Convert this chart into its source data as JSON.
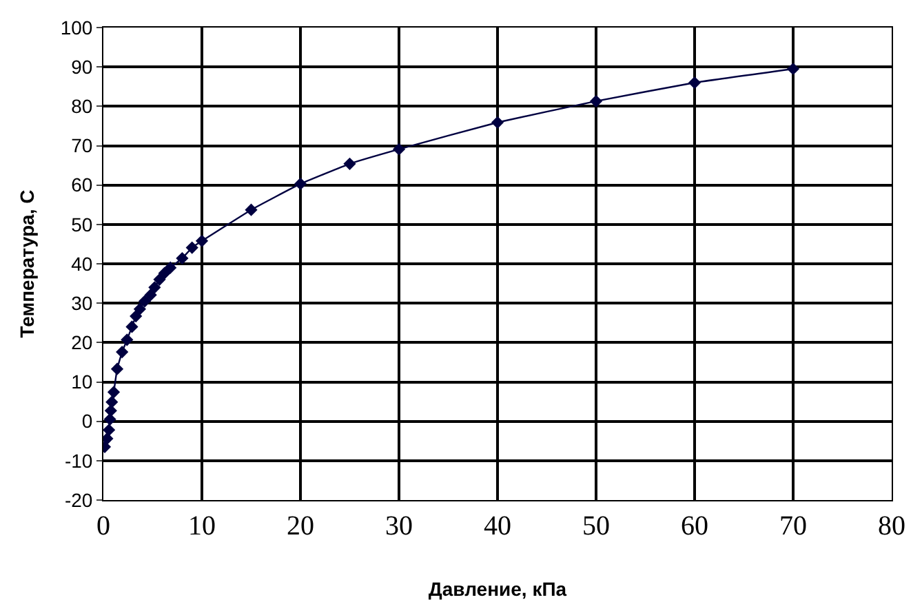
{
  "chart_data": {
    "type": "line",
    "xlabel": "Давление, кПа",
    "ylabel": "Температура, С",
    "x": [
      0.14,
      0.38,
      0.57,
      0.67,
      0.76,
      0.86,
      1.05,
      1.4,
      1.9,
      2.4,
      2.9,
      3.3,
      3.7,
      4.2,
      4.8,
      5.2,
      5.7,
      6.2,
      6.8,
      8,
      9,
      10,
      15,
      20,
      25,
      30,
      40,
      50,
      60,
      70
    ],
    "series": [
      {
        "color": "#000040",
        "values": [
          -6.5,
          -4.4,
          -2.2,
          0.5,
          2.7,
          4.9,
          7.4,
          13.3,
          17.6,
          20.7,
          24,
          26.7,
          28.5,
          30.5,
          32.1,
          34,
          36,
          37.6,
          39,
          41.4,
          44.1,
          45.8,
          53.7,
          60.3,
          65.4,
          69.1,
          75.9,
          81.3,
          86,
          89.5
        ]
      }
    ],
    "xlim": [
      0,
      80
    ],
    "xticks": [
      0,
      10,
      20,
      30,
      40,
      50,
      60,
      70,
      80
    ],
    "ylim": [
      -20,
      100
    ],
    "yticks": [
      -20,
      -10,
      0,
      10,
      20,
      30,
      40,
      50,
      60,
      70,
      80,
      90,
      100
    ],
    "grid": true,
    "legend": false,
    "marker": "diamond",
    "line_style": "solid"
  }
}
